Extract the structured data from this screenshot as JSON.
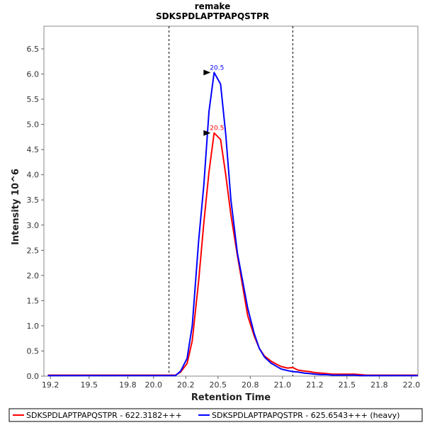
{
  "chart_data": {
    "type": "line",
    "title": "remake",
    "subtitle": "SDKSPDLAPTPAPQSTPR",
    "xlabel": "Retention Time",
    "ylabel": "Intensity 10^6",
    "xlim": [
      19.15,
      22.05
    ],
    "ylim": [
      0,
      6.95
    ],
    "xticks": [
      "19.2",
      "19.5",
      "19.8",
      "20.0",
      "20.2",
      "20.5",
      "20.8",
      "21.0",
      "21.2",
      "21.5",
      "21.8",
      "22.0"
    ],
    "xtick_values": [
      19.2,
      19.5,
      19.8,
      20.0,
      20.25,
      20.5,
      20.75,
      21.0,
      21.25,
      21.5,
      21.75,
      22.0
    ],
    "yticks": [
      "0.0",
      "0.5",
      "1.0",
      "1.5",
      "2.0",
      "2.5",
      "3.0",
      "3.5",
      "4.0",
      "4.5",
      "5.0",
      "5.5",
      "6.0",
      "6.5"
    ],
    "ytick_values": [
      0,
      0.5,
      1.0,
      1.5,
      2.0,
      2.5,
      3.0,
      3.5,
      4.0,
      4.5,
      5.0,
      5.5,
      6.0,
      6.5
    ],
    "grid": false,
    "boundaries": [
      20.12,
      21.08
    ],
    "series": [
      {
        "name": "SDKSPDLAPTPAPQSTPR - 622.3182+++",
        "color": "#ff0000",
        "peak_label": "20.5",
        "peak_value": 4.83,
        "x": [
          19.18,
          20.0,
          20.12,
          20.17,
          20.21,
          20.26,
          20.3,
          20.35,
          20.39,
          20.43,
          20.47,
          20.52,
          20.56,
          20.6,
          20.65,
          20.69,
          20.73,
          20.78,
          20.82,
          20.86,
          20.91,
          20.95,
          20.99,
          21.04,
          21.08,
          21.12,
          21.17,
          21.21,
          21.25,
          21.3,
          21.34,
          21.39,
          21.43,
          21.47,
          21.52,
          21.56,
          21.6,
          21.65,
          22.05
        ],
        "y": [
          0.02,
          0.02,
          0.02,
          0.02,
          0.08,
          0.25,
          0.7,
          1.9,
          3.05,
          4.05,
          4.83,
          4.7,
          4.0,
          3.2,
          2.4,
          1.8,
          1.2,
          0.8,
          0.55,
          0.4,
          0.3,
          0.24,
          0.19,
          0.16,
          0.17,
          0.12,
          0.1,
          0.09,
          0.07,
          0.06,
          0.05,
          0.04,
          0.04,
          0.04,
          0.04,
          0.04,
          0.03,
          0.02,
          0.02
        ]
      },
      {
        "name": "SDKSPDLAPTPAPQSTPR - 625.6543+++ (heavy)",
        "color": "#0000ff",
        "peak_label": "20.5",
        "peak_value": 6.03,
        "x": [
          19.18,
          20.0,
          20.12,
          20.17,
          20.21,
          20.26,
          20.3,
          20.35,
          20.39,
          20.43,
          20.47,
          20.52,
          20.56,
          20.6,
          20.65,
          20.69,
          20.73,
          20.78,
          20.82,
          20.86,
          20.91,
          20.95,
          20.99,
          21.04,
          21.08,
          21.12,
          21.17,
          21.21,
          21.25,
          21.3,
          21.34,
          21.39,
          21.43,
          21.47,
          21.52,
          21.56,
          21.6,
          21.65,
          22.05
        ],
        "y": [
          0.01,
          0.01,
          0.01,
          0.01,
          0.1,
          0.35,
          1.0,
          2.7,
          3.8,
          5.25,
          6.03,
          5.8,
          4.8,
          3.5,
          2.45,
          1.9,
          1.35,
          0.85,
          0.55,
          0.38,
          0.26,
          0.2,
          0.14,
          0.11,
          0.09,
          0.08,
          0.06,
          0.05,
          0.04,
          0.03,
          0.03,
          0.02,
          0.02,
          0.02,
          0.02,
          0.02,
          0.01,
          0.01,
          0.01
        ]
      }
    ],
    "legend_position": "bottom"
  }
}
